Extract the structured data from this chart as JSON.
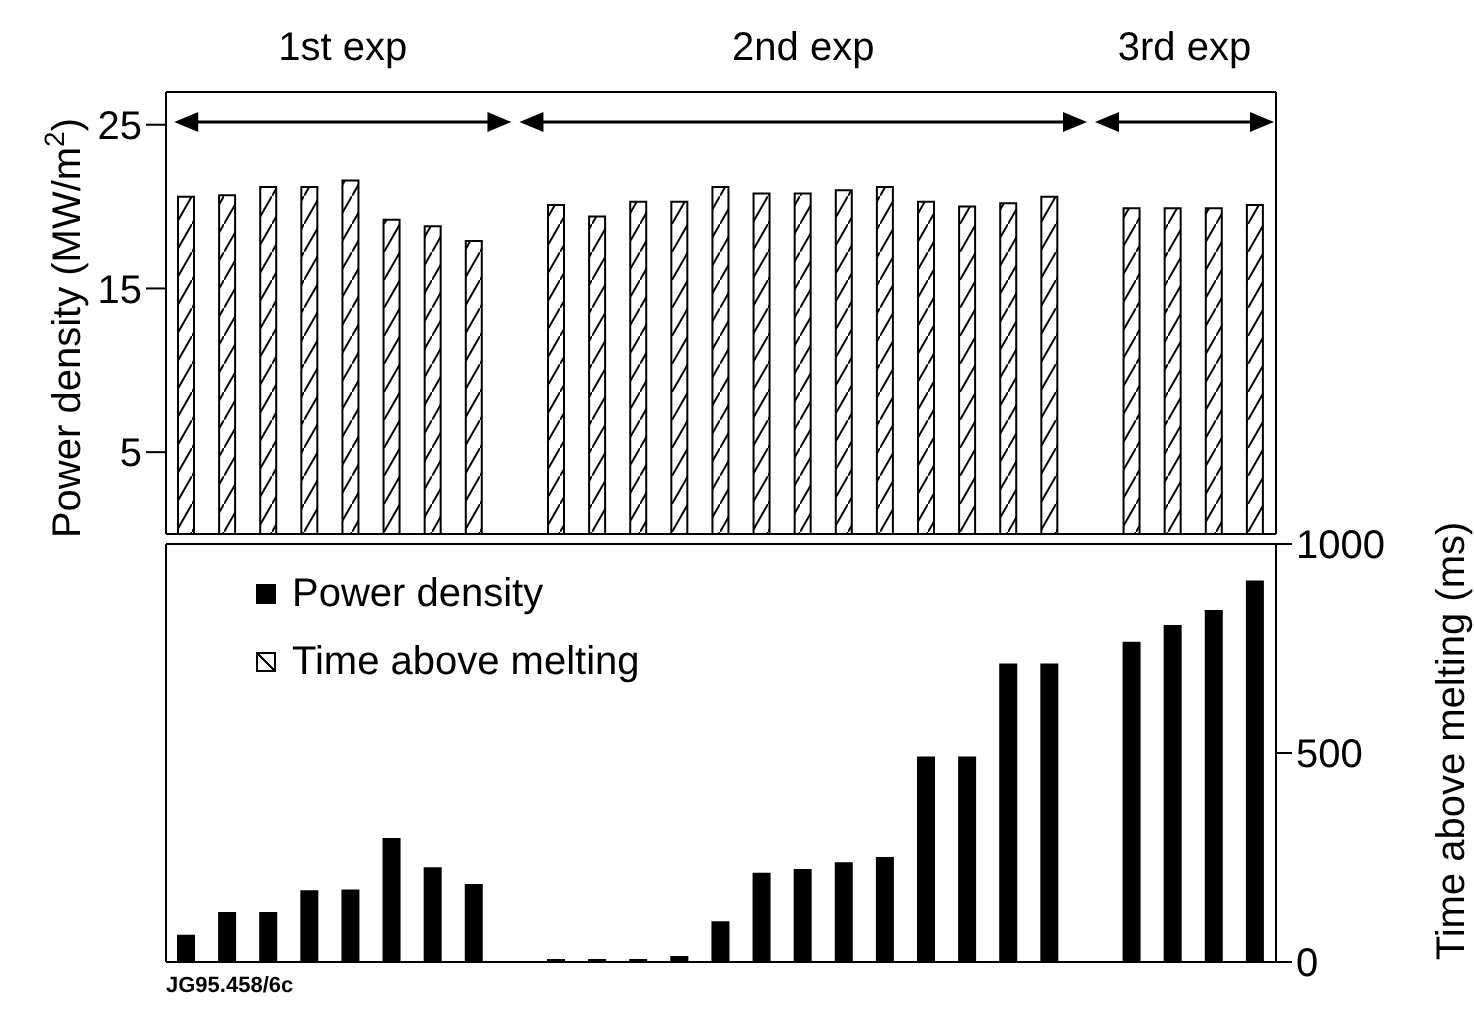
{
  "chart_data": [
    {
      "type": "bar",
      "categories": [
        null,
        null,
        null,
        null,
        null,
        null,
        null,
        null,
        null,
        null,
        null,
        null,
        null,
        null,
        null,
        null,
        null,
        null,
        null,
        null,
        null,
        null,
        null,
        null,
        null,
        null,
        null
      ],
      "series": [
        {
          "name": "Time above melting",
          "color": "#000000",
          "values": [
            20.6,
            20.7,
            21.2,
            21.2,
            21.6,
            19.2,
            18.8,
            17.9,
            null,
            20.1,
            19.4,
            20.3,
            20.3,
            21.2,
            20.8,
            20.8,
            21.0,
            21.2,
            20.3,
            20.0,
            20.2,
            20.6,
            null,
            19.9,
            19.9,
            19.9,
            20.1
          ]
        }
      ],
      "ylabel": "Power density (MW/m$^{2}$)",
      "ylim": [
        0,
        27
      ],
      "yticks": [
        5,
        15,
        25
      ],
      "tick_labels": "y",
      "annotations": [
        "1st exp",
        "2nd exp",
        "3rd exp"
      ]
    },
    {
      "type": "bar",
      "categories": [
        null,
        null,
        null,
        null,
        null,
        null,
        null,
        null,
        null,
        null,
        null,
        null,
        null,
        null,
        null,
        null,
        null,
        null,
        null,
        null,
        null,
        null,
        null,
        null,
        null,
        null,
        null
      ],
      "series": [
        {
          "name": "Power density",
          "color": "#000000",
          "axis": "y2",
          "values": [
            63,
            117,
            117,
            169,
            171,
            294,
            224,
            184,
            null,
            5,
            5,
            5,
            12,
            95,
            211,
            220,
            236,
            249,
            489,
            489,
            712,
            712,
            null,
            764,
            804,
            840,
            910
          ]
        }
      ],
      "y2label": "Time above melting (ms)",
      "y2lim": [
        0,
        1000
      ],
      "y2ticks": [
        0,
        500,
        1000
      ],
      "tick_labels": "y",
      "legend": "top left",
      "annotations": [
        "JG95.458/6c"
      ]
    }
  ]
}
